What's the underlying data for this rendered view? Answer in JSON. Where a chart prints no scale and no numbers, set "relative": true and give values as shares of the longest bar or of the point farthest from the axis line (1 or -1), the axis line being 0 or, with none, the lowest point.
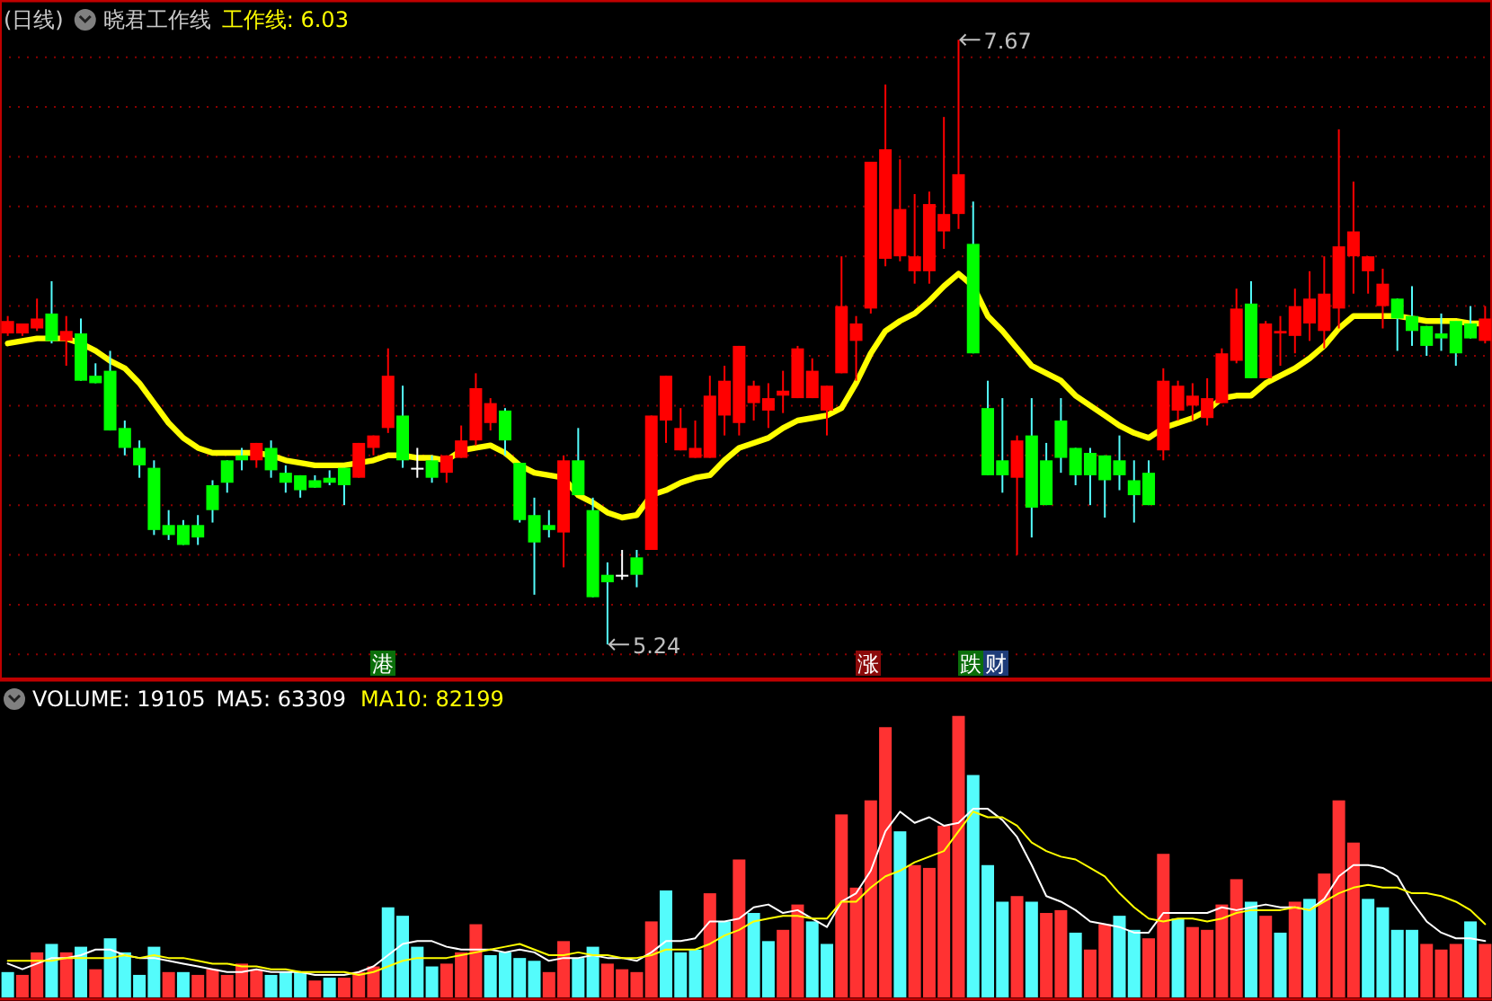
{
  "chart_data": [
    {
      "type": "candlestick",
      "title": "(日线)",
      "subtitle": "晓君工作线",
      "categories": [
        null,
        null,
        null,
        null,
        null,
        null,
        null,
        null,
        null,
        null,
        null,
        null,
        null,
        null,
        null,
        null,
        null,
        null,
        null,
        null,
        null,
        null,
        null,
        null,
        null,
        null,
        null,
        null,
        null,
        null,
        null,
        null,
        null,
        null,
        null,
        null,
        null,
        null,
        null,
        null,
        null,
        null,
        null,
        null,
        null,
        null,
        null,
        null,
        null,
        null,
        null,
        null,
        null,
        null,
        null,
        null,
        null,
        null,
        null,
        null,
        null,
        null,
        null,
        null,
        null,
        null,
        null,
        null,
        null,
        null,
        null,
        null,
        null,
        null,
        null,
        null,
        null,
        null,
        null,
        null,
        null,
        null,
        null,
        null,
        null,
        null,
        null,
        null,
        null,
        null,
        null,
        null,
        null,
        null,
        null,
        null,
        null,
        null,
        null,
        null,
        null,
        null
      ],
      "ohlc": [
        [
          6.49,
          6.56,
          6.48,
          6.54
        ],
        [
          6.49,
          6.53,
          6.48,
          6.53
        ],
        [
          6.51,
          6.63,
          6.5,
          6.55
        ],
        [
          6.57,
          6.7,
          6.45,
          6.46
        ],
        [
          6.46,
          6.56,
          6.36,
          6.5
        ],
        [
          6.49,
          6.55,
          6.3,
          6.3
        ],
        [
          6.32,
          6.37,
          6.29,
          6.29
        ],
        [
          6.34,
          6.42,
          6.1,
          6.1
        ],
        [
          6.11,
          6.14,
          6.0,
          6.03
        ],
        [
          6.03,
          6.06,
          5.91,
          5.96
        ],
        [
          5.95,
          5.98,
          5.68,
          5.7
        ],
        [
          5.72,
          5.78,
          5.66,
          5.68
        ],
        [
          5.72,
          5.74,
          5.64,
          5.64
        ],
        [
          5.72,
          5.76,
          5.64,
          5.67
        ],
        [
          5.88,
          5.9,
          5.73,
          5.78
        ],
        [
          5.98,
          5.98,
          5.85,
          5.89
        ],
        [
          6.0,
          6.03,
          5.94,
          5.98
        ],
        [
          5.98,
          6.05,
          5.95,
          6.05
        ],
        [
          6.03,
          6.06,
          5.91,
          5.94
        ],
        [
          5.93,
          5.96,
          5.85,
          5.89
        ],
        [
          5.92,
          5.92,
          5.83,
          5.86
        ],
        [
          5.9,
          5.92,
          5.87,
          5.87
        ],
        [
          5.91,
          5.94,
          5.88,
          5.89
        ],
        [
          5.95,
          5.95,
          5.8,
          5.88
        ],
        [
          5.91,
          6.05,
          5.91,
          6.05
        ],
        [
          6.03,
          6.08,
          6.0,
          6.08
        ],
        [
          6.11,
          6.43,
          6.09,
          6.32
        ],
        [
          6.16,
          6.28,
          5.95,
          5.98
        ],
        [
          5.95,
          6.03,
          5.91,
          5.95
        ],
        [
          5.98,
          6.0,
          5.89,
          5.91
        ],
        [
          5.93,
          6.0,
          5.89,
          6.0
        ],
        [
          5.99,
          6.12,
          5.99,
          6.06
        ],
        [
          6.06,
          6.33,
          6.04,
          6.27
        ],
        [
          6.13,
          6.23,
          6.1,
          6.21
        ],
        [
          6.18,
          6.19,
          6.0,
          6.06
        ],
        [
          5.97,
          5.97,
          5.73,
          5.74
        ],
        [
          5.76,
          5.83,
          5.44,
          5.65
        ],
        [
          5.72,
          5.78,
          5.67,
          5.7
        ],
        [
          5.69,
          6.0,
          5.55,
          5.98
        ],
        [
          5.98,
          6.11,
          5.84,
          5.84
        ],
        [
          5.78,
          5.83,
          5.43,
          5.43
        ],
        [
          5.52,
          5.57,
          5.24,
          5.49
        ],
        [
          5.52,
          5.62,
          5.5,
          5.52
        ],
        [
          5.59,
          5.62,
          5.47,
          5.52
        ],
        [
          5.62,
          6.16,
          5.62,
          6.16
        ],
        [
          6.14,
          6.32,
          6.05,
          6.32
        ],
        [
          6.02,
          6.19,
          6.02,
          6.11
        ],
        [
          5.99,
          6.14,
          5.99,
          6.03
        ],
        [
          5.99,
          6.32,
          5.99,
          6.24
        ],
        [
          6.16,
          6.36,
          6.08,
          6.3
        ],
        [
          6.13,
          6.44,
          6.08,
          6.44
        ],
        [
          6.21,
          6.3,
          6.14,
          6.28
        ],
        [
          6.18,
          6.29,
          6.11,
          6.23
        ],
        [
          6.24,
          6.34,
          6.17,
          6.26
        ],
        [
          6.23,
          6.44,
          6.23,
          6.43
        ],
        [
          6.23,
          6.39,
          6.23,
          6.34
        ],
        [
          6.18,
          6.28,
          6.08,
          6.28
        ],
        [
          6.33,
          6.8,
          6.33,
          6.6
        ],
        [
          6.46,
          6.56,
          6.3,
          6.53
        ],
        [
          6.59,
          7.18,
          6.57,
          7.18
        ],
        [
          6.79,
          7.49,
          6.76,
          7.23
        ],
        [
          6.8,
          7.19,
          6.78,
          6.99
        ],
        [
          6.74,
          7.05,
          6.69,
          6.8
        ],
        [
          6.74,
          7.06,
          6.69,
          7.01
        ],
        [
          6.9,
          7.36,
          6.83,
          6.97
        ],
        [
          6.97,
          7.67,
          6.91,
          7.13
        ],
        [
          6.85,
          7.02,
          6.41,
          6.41
        ],
        [
          6.19,
          6.3,
          5.92,
          5.92
        ],
        [
          5.98,
          6.23,
          5.85,
          5.92
        ],
        [
          5.91,
          6.08,
          5.6,
          6.06
        ],
        [
          6.08,
          6.23,
          5.67,
          5.79
        ],
        [
          5.98,
          6.05,
          5.8,
          5.8
        ],
        [
          6.14,
          6.23,
          5.93,
          5.99
        ],
        [
          6.03,
          6.03,
          5.88,
          5.92
        ],
        [
          6.01,
          6.03,
          5.8,
          5.92
        ],
        [
          6.0,
          6.0,
          5.75,
          5.9
        ],
        [
          5.98,
          6.08,
          5.86,
          5.92
        ],
        [
          5.9,
          5.98,
          5.73,
          5.84
        ],
        [
          5.93,
          5.98,
          5.8,
          5.8
        ],
        [
          6.02,
          6.35,
          5.98,
          6.3
        ],
        [
          6.18,
          6.3,
          6.14,
          6.28
        ],
        [
          6.2,
          6.29,
          6.14,
          6.24
        ],
        [
          6.15,
          6.31,
          6.12,
          6.23
        ],
        [
          6.21,
          6.43,
          6.21,
          6.41
        ],
        [
          6.38,
          6.67,
          6.37,
          6.59
        ],
        [
          6.61,
          6.7,
          6.31,
          6.31
        ],
        [
          6.31,
          6.54,
          6.31,
          6.53
        ],
        [
          6.49,
          6.56,
          6.36,
          6.5
        ],
        [
          6.48,
          6.67,
          6.41,
          6.6
        ],
        [
          6.53,
          6.74,
          6.46,
          6.63
        ],
        [
          6.5,
          6.8,
          6.43,
          6.65
        ],
        [
          6.59,
          7.31,
          6.51,
          6.84
        ],
        [
          6.8,
          7.1,
          6.65,
          6.9
        ],
        [
          6.74,
          6.8,
          6.65,
          6.8
        ],
        [
          6.6,
          6.75,
          6.51,
          6.69
        ],
        [
          6.63,
          6.63,
          6.42,
          6.55
        ],
        [
          6.56,
          6.68,
          6.44,
          6.5
        ],
        [
          6.52,
          6.52,
          6.4,
          6.44
        ],
        [
          6.49,
          6.57,
          6.42,
          6.47
        ],
        [
          6.54,
          6.54,
          6.36,
          6.41
        ],
        [
          6.53,
          6.6,
          6.47,
          6.47
        ],
        [
          6.46,
          6.6,
          6.45,
          6.55
        ]
      ],
      "series": [
        {
          "type": "line",
          "name": "工作线: 6.03",
          "color": "#ffff00",
          "values": [
            6.45,
            6.46,
            6.47,
            6.47,
            6.47,
            6.45,
            6.42,
            6.38,
            6.35,
            6.29,
            6.21,
            6.13,
            6.07,
            6.03,
            6.01,
            6.01,
            6.01,
            6.01,
            6.0,
            5.98,
            5.97,
            5.96,
            5.96,
            5.96,
            5.97,
            5.98,
            6.0,
            6.0,
            5.99,
            5.99,
            5.98,
            6.02,
            6.03,
            6.04,
            6.01,
            5.96,
            5.93,
            5.92,
            5.91,
            5.84,
            5.81,
            5.77,
            5.75,
            5.76,
            5.84,
            5.86,
            5.89,
            5.91,
            5.92,
            5.98,
            6.03,
            6.05,
            6.07,
            6.11,
            6.14,
            6.15,
            6.16,
            6.19,
            6.29,
            6.41,
            6.5,
            6.54,
            6.57,
            6.62,
            6.68,
            6.73,
            6.68,
            6.56,
            6.5,
            6.43,
            6.36,
            6.33,
            6.3,
            6.24,
            6.2,
            6.16,
            6.12,
            6.09,
            6.07,
            6.11,
            6.13,
            6.15,
            6.18,
            6.23,
            6.24,
            6.24,
            6.29,
            6.32,
            6.35,
            6.39,
            6.44,
            6.51,
            6.56,
            6.56,
            6.56,
            6.56,
            6.55,
            6.54,
            6.54,
            6.54,
            6.53,
            6.53
          ]
        }
      ],
      "ylim": [
        5.1,
        7.83
      ],
      "yticks": [
        {
          "value": 5.2,
          "label": null
        },
        {
          "value": 5.4,
          "label": null
        },
        {
          "value": 5.6,
          "label": null
        },
        {
          "value": 5.8,
          "label": null
        },
        {
          "value": 6.0,
          "label": null
        },
        {
          "value": 6.2,
          "label": null
        },
        {
          "value": 6.4,
          "label": null
        },
        {
          "value": 6.6,
          "label": null
        },
        {
          "value": 6.8,
          "label": null
        },
        {
          "value": 7.0,
          "label": null
        },
        {
          "value": 7.2,
          "label": null
        },
        {
          "value": 7.4,
          "label": null
        },
        {
          "value": 7.6,
          "label": null
        }
      ],
      "grid": "y",
      "annotations": [
        "7.67",
        "5.24",
        "港",
        "涨",
        "跌",
        "财"
      ]
    },
    {
      "type": "bar",
      "title": "VOLUME: 19105",
      "relative": true,
      "categories": [
        null,
        null,
        null,
        null,
        null,
        null,
        null,
        null,
        null,
        null,
        null,
        null,
        null,
        null,
        null,
        null,
        null,
        null,
        null,
        null,
        null,
        null,
        null,
        null,
        null,
        null,
        null,
        null,
        null,
        null,
        null,
        null,
        null,
        null,
        null,
        null,
        null,
        null,
        null,
        null,
        null,
        null,
        null,
        null,
        null,
        null,
        null,
        null,
        null,
        null,
        null,
        null,
        null,
        null,
        null,
        null,
        null,
        null,
        null,
        null,
        null,
        null,
        null,
        null,
        null,
        null,
        null,
        null,
        null,
        null,
        null,
        null,
        null,
        null,
        null,
        null,
        null,
        null,
        null,
        null,
        null,
        null,
        null,
        null,
        null,
        null,
        null,
        null,
        null,
        null,
        null,
        null,
        null,
        null,
        null,
        null,
        null,
        null,
        null,
        null,
        null,
        null
      ],
      "values": [
        0.09,
        0.08,
        0.16,
        0.19,
        0.16,
        0.18,
        0.1,
        0.21,
        0.16,
        0.08,
        0.18,
        0.09,
        0.09,
        0.08,
        0.1,
        0.08,
        0.12,
        0.1,
        0.08,
        0.09,
        0.09,
        0.06,
        0.07,
        0.07,
        0.09,
        0.11,
        0.32,
        0.29,
        0.18,
        0.11,
        0.12,
        0.16,
        0.26,
        0.15,
        0.16,
        0.14,
        0.13,
        0.09,
        0.2,
        0.14,
        0.18,
        0.12,
        0.1,
        0.09,
        0.27,
        0.38,
        0.16,
        0.17,
        0.37,
        0.27,
        0.49,
        0.3,
        0.2,
        0.24,
        0.33,
        0.27,
        0.19,
        0.65,
        0.39,
        0.7,
        0.96,
        0.59,
        0.47,
        0.46,
        0.61,
        1,
        0.79,
        0.47,
        0.34,
        0.36,
        0.34,
        0.3,
        0.31,
        0.23,
        0.17,
        0.26,
        0.29,
        0.24,
        0.21,
        0.51,
        0.28,
        0.25,
        0.24,
        0.33,
        0.42,
        0.34,
        0.29,
        0.23,
        0.34,
        0.35,
        0.44,
        0.7,
        0.55,
        0.35,
        0.32,
        0.24,
        0.24,
        0.19,
        0.17,
        0.19,
        0.27,
        0.19
      ],
      "colors": [
        "#54fcfc",
        "#ff3232",
        "#ff3232",
        "#54fcfc",
        "#ff3232",
        "#54fcfc",
        "#ff3232",
        "#54fcfc",
        "#54fcfc",
        "#54fcfc",
        "#54fcfc",
        "#ff3232",
        "#54fcfc",
        "#ff3232",
        "#ff3232",
        "#ff3232",
        "#ff3232",
        "#ff3232",
        "#54fcfc",
        "#54fcfc",
        "#54fcfc",
        "#ff3232",
        "#54fcfc",
        "#ff3232",
        "#ff3232",
        "#ff3232",
        "#54fcfc",
        "#54fcfc",
        "#54fcfc",
        "#54fcfc",
        "#ff3232",
        "#ff3232",
        "#ff3232",
        "#54fcfc",
        "#54fcfc",
        "#54fcfc",
        "#54fcfc",
        "#ff3232",
        "#ff3232",
        "#54fcfc",
        "#54fcfc",
        "#ff3232",
        "#ff3232",
        "#ff3232",
        "#ff3232",
        "#54fcfc",
        "#54fcfc",
        "#54fcfc",
        "#ff3232",
        "#54fcfc",
        "#ff3232",
        "#54fcfc",
        "#54fcfc",
        "#ff3232",
        "#ff3232",
        "#54fcfc",
        "#54fcfc",
        "#ff3232",
        "#ff3232",
        "#ff3232",
        "#ff3232",
        "#54fcfc",
        "#ff3232",
        "#ff3232",
        "#ff3232",
        "#ff3232",
        "#54fcfc",
        "#54fcfc",
        "#54fcfc",
        "#ff3232",
        "#54fcfc",
        "#ff3232",
        "#ff3232",
        "#54fcfc",
        "#ff3232",
        "#ff3232",
        "#54fcfc",
        "#54fcfc",
        "#ff3232",
        "#ff3232",
        "#54fcfc",
        "#ff3232",
        "#ff3232",
        "#ff3232",
        "#ff3232",
        "#54fcfc",
        "#ff3232",
        "#54fcfc",
        "#ff3232",
        "#54fcfc",
        "#ff3232",
        "#ff3232",
        "#ff3232",
        "#54fcfc",
        "#54fcfc",
        "#54fcfc",
        "#54fcfc",
        "#ff3232",
        "#ff3232",
        "#ff3232",
        "#54fcfc",
        "#ff3232"
      ],
      "series": [
        {
          "type": "line",
          "name": "MA5: 63309",
          "color": "#ffffff",
          "values": [
            0.12,
            0.1,
            0.12,
            0.14,
            0.14,
            0.15,
            0.17,
            0.17,
            0.15,
            0.14,
            0.14,
            0.13,
            0.12,
            0.11,
            0.1,
            0.09,
            0.09,
            0.1,
            0.09,
            0.09,
            0.09,
            0.08,
            0.08,
            0.08,
            0.09,
            0.11,
            0.15,
            0.19,
            0.2,
            0.2,
            0.18,
            0.17,
            0.17,
            0.17,
            0.16,
            0.17,
            0.16,
            0.13,
            0.14,
            0.14,
            0.15,
            0.14,
            0.14,
            0.13,
            0.16,
            0.2,
            0.2,
            0.21,
            0.27,
            0.27,
            0.28,
            0.32,
            0.33,
            0.3,
            0.31,
            0.28,
            0.25,
            0.34,
            0.37,
            0.45,
            0.59,
            0.66,
            0.62,
            0.64,
            0.61,
            0.62,
            0.67,
            0.67,
            0.63,
            0.57,
            0.47,
            0.36,
            0.34,
            0.31,
            0.27,
            0.26,
            0.25,
            0.23,
            0.23,
            0.3,
            0.3,
            0.3,
            0.3,
            0.32,
            0.31,
            0.32,
            0.33,
            0.32,
            0.32,
            0.31,
            0.35,
            0.43,
            0.47,
            0.47,
            0.46,
            0.43,
            0.34,
            0.27,
            0.23,
            0.21,
            0.21,
            0.2
          ]
        },
        {
          "type": "line",
          "name": "MA10: 82199",
          "color": "#ffff00",
          "values": [
            0.13,
            0.13,
            0.13,
            0.13,
            0.14,
            0.14,
            0.14,
            0.14,
            0.15,
            0.14,
            0.15,
            0.14,
            0.14,
            0.13,
            0.12,
            0.12,
            0.11,
            0.11,
            0.1,
            0.1,
            0.09,
            0.09,
            0.09,
            0.09,
            0.08,
            0.09,
            0.11,
            0.13,
            0.14,
            0.14,
            0.14,
            0.15,
            0.16,
            0.17,
            0.18,
            0.19,
            0.17,
            0.15,
            0.15,
            0.16,
            0.15,
            0.15,
            0.14,
            0.14,
            0.15,
            0.17,
            0.17,
            0.17,
            0.19,
            0.22,
            0.24,
            0.27,
            0.28,
            0.29,
            0.29,
            0.28,
            0.28,
            0.34,
            0.34,
            0.39,
            0.43,
            0.45,
            0.48,
            0.5,
            0.52,
            0.59,
            0.66,
            0.64,
            0.64,
            0.61,
            0.55,
            0.52,
            0.5,
            0.49,
            0.46,
            0.43,
            0.37,
            0.32,
            0.28,
            0.27,
            0.28,
            0.28,
            0.27,
            0.28,
            0.3,
            0.31,
            0.31,
            0.31,
            0.32,
            0.31,
            0.34,
            0.37,
            0.39,
            0.4,
            0.39,
            0.39,
            0.37,
            0.37,
            0.36,
            0.34,
            0.31,
            0.26
          ]
        }
      ]
    }
  ]
}
